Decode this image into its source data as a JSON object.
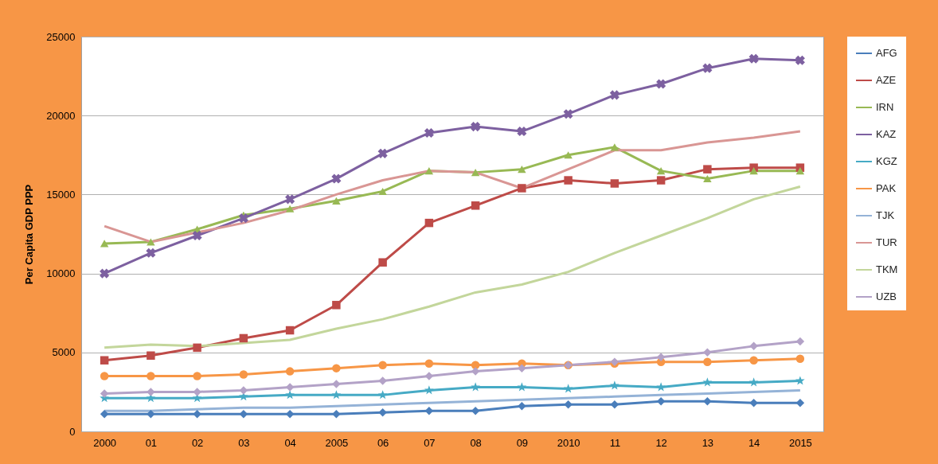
{
  "chart_data": {
    "type": "line",
    "ylabel": "Per Capita GDP PPP",
    "categories": [
      "2000",
      "01",
      "02",
      "03",
      "04",
      "2005",
      "06",
      "07",
      "08",
      "09",
      "2010",
      "11",
      "12",
      "13",
      "14",
      "2015"
    ],
    "ylim": [
      0,
      25000
    ],
    "yticks": [
      0,
      5000,
      10000,
      15000,
      20000,
      25000
    ],
    "grid": "y",
    "legend": "right",
    "series": [
      {
        "name": "AFG",
        "color": "#4a7ebb",
        "marker": "diamond",
        "values": [
          1100,
          1100,
          1100,
          1100,
          1100,
          1100,
          1200,
          1300,
          1300,
          1600,
          1700,
          1700,
          1900,
          1900,
          1800,
          1800
        ]
      },
      {
        "name": "AZE",
        "color": "#be4b48",
        "marker": "square",
        "values": [
          4500,
          4800,
          5300,
          5900,
          6400,
          8000,
          10700,
          13200,
          14300,
          15400,
          15900,
          15700,
          15900,
          16600,
          16700,
          16700
        ]
      },
      {
        "name": "IRN",
        "color": "#98b954",
        "marker": "triangle",
        "values": [
          11900,
          12000,
          12800,
          13700,
          14100,
          14600,
          15200,
          16500,
          16400,
          16600,
          17500,
          18000,
          16500,
          16000,
          16500,
          16500
        ]
      },
      {
        "name": "KAZ",
        "color": "#7d60a0",
        "marker": "cross",
        "values": [
          10000,
          11300,
          12400,
          13500,
          14700,
          16000,
          17600,
          18900,
          19300,
          19000,
          20100,
          21300,
          22000,
          23000,
          23600,
          23500
        ]
      },
      {
        "name": "KGZ",
        "color": "#46aac5",
        "marker": "star",
        "values": [
          2100,
          2100,
          2100,
          2200,
          2300,
          2300,
          2300,
          2600,
          2800,
          2800,
          2700,
          2900,
          2800,
          3100,
          3100,
          3200
        ]
      },
      {
        "name": "PAK",
        "color": "#f79646",
        "marker": "circle",
        "values": [
          3500,
          3500,
          3500,
          3600,
          3800,
          4000,
          4200,
          4300,
          4200,
          4300,
          4200,
          4300,
          4400,
          4400,
          4500,
          4600
        ]
      },
      {
        "name": "TJK",
        "color": "#95b3d7",
        "marker": "none",
        "values": [
          1300,
          1300,
          1400,
          1500,
          1500,
          1600,
          1700,
          1800,
          1900,
          2000,
          2100,
          2200,
          2300,
          2400,
          2500,
          2600
        ]
      },
      {
        "name": "TUR",
        "color": "#d99694",
        "marker": "none",
        "values": [
          13000,
          12000,
          12600,
          13200,
          14000,
          15000,
          15900,
          16500,
          16400,
          15400,
          16600,
          17800,
          17800,
          18300,
          18600,
          19000
        ]
      },
      {
        "name": "TKM",
        "color": "#c3d69b",
        "marker": "none",
        "values": [
          5300,
          5500,
          5400,
          5600,
          5800,
          6500,
          7100,
          7900,
          8800,
          9300,
          10100,
          11300,
          12400,
          13500,
          14700,
          15500
        ]
      },
      {
        "name": "UZB",
        "color": "#b3a2c7",
        "marker": "diamond",
        "values": [
          2400,
          2500,
          2500,
          2600,
          2800,
          3000,
          3200,
          3500,
          3800,
          4000,
          4200,
          4400,
          4700,
          5000,
          5400,
          5700
        ]
      }
    ]
  }
}
